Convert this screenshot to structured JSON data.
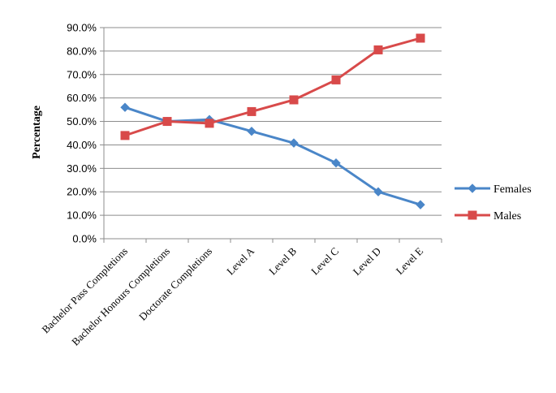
{
  "chart_data": {
    "type": "line",
    "title": "",
    "xlabel": "",
    "ylabel": "Percentage",
    "ylim": [
      0,
      90
    ],
    "yticks": [
      "0.0%",
      "10.0%",
      "20.0%",
      "30.0%",
      "40.0%",
      "50.0%",
      "60.0%",
      "70.0%",
      "80.0%",
      "90.0%"
    ],
    "grid": "horizontal",
    "legend_position": "right",
    "categories": [
      "Bachelor Pass Completions",
      "Bachelor Honours Completions",
      "Doctorate Completions",
      "Level A",
      "Level B",
      "Level C",
      "Level D",
      "Level E"
    ],
    "series": [
      {
        "name": "Females",
        "color": "#4a86c8",
        "marker": "diamond",
        "values": [
          56.0,
          50.0,
          50.8,
          45.8,
          40.8,
          32.3,
          20.0,
          14.5
        ]
      },
      {
        "name": "Males",
        "color": "#d84a4a",
        "marker": "square",
        "values": [
          44.0,
          50.0,
          49.2,
          54.2,
          59.2,
          67.7,
          80.5,
          85.5
        ]
      }
    ]
  }
}
